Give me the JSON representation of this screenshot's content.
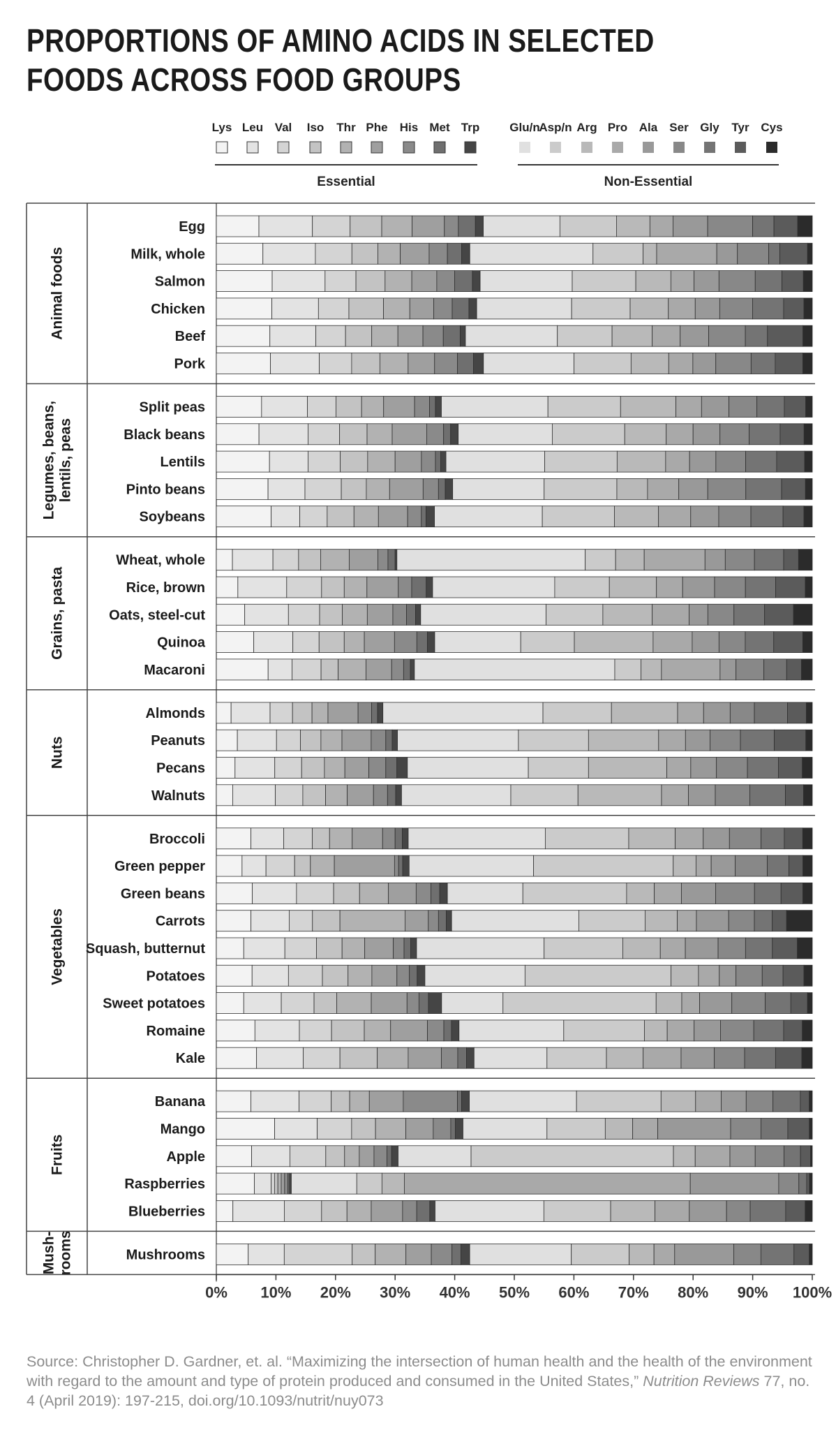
{
  "title": "PROPORTIONS OF AMINO ACIDS IN SELECTED FOODS ACROSS FOOD GROUPS",
  "source": {
    "pre": "Source: Christopher D. Gardner, et. al. “Maximizing the intersection of human health and the health of the environment with regard to the amount and type of protein produced and consumed in the United States,” ",
    "journal": "Nutrition Reviews",
    "post": " 77, no. 4 (April 2019): 197-215, doi.org/10.1093/nutrit/nuy073"
  },
  "chart_data": {
    "type": "bar",
    "orientation": "horizontal",
    "stacked": true,
    "xlim": [
      0,
      100
    ],
    "x_ticks": [
      "0%",
      "10%",
      "20%",
      "30%",
      "40%",
      "50%",
      "60%",
      "70%",
      "80%",
      "90%",
      "100%"
    ],
    "legend_placement": "top",
    "legend_groups": [
      {
        "label": "Essential",
        "amino_acids": [
          "Lys",
          "Leu",
          "Val",
          "Iso",
          "Thr",
          "Phe",
          "His",
          "Met",
          "Trp"
        ]
      },
      {
        "label": "Non-Essential",
        "amino_acids": [
          "Glu/n",
          "Asp/n",
          "Arg",
          "Pro",
          "Ala",
          "Ser",
          "Gly",
          "Tyr",
          "Cys"
        ]
      }
    ],
    "colors": {
      "essential": [
        "#f3f3f3",
        "#e3e3e3",
        "#d4d4d4",
        "#c3c3c3",
        "#b2b2b2",
        "#9f9f9f",
        "#8a8a8a",
        "#6f6f6f",
        "#454545"
      ],
      "non_essential": [
        "#e0e0e0",
        "#cbcbcb",
        "#b9b9b9",
        "#a9a9a9",
        "#999999",
        "#888888",
        "#747474",
        "#5b5b5b",
        "#2b2b2b"
      ]
    },
    "series_order": [
      "Lys",
      "Leu",
      "Val",
      "Iso",
      "Thr",
      "Phe",
      "His",
      "Met",
      "Trp",
      "Glu/n",
      "Asp/n",
      "Arg",
      "Pro",
      "Ala",
      "Ser",
      "Gly",
      "Tyr",
      "Cys"
    ],
    "groups": [
      {
        "name": "Animal foods",
        "foods": [
          {
            "name": "Egg",
            "values": [
              7,
              8.8,
              6.2,
              5.2,
              5,
              5.3,
              2.3,
              2.8,
              1.3,
              12.6,
              9.3,
              5.5,
              3.8,
              5.7,
              7.4,
              3.5,
              3.9,
              2.4
            ]
          },
          {
            "name": "Milk, whole",
            "values": [
              7.9,
              8.9,
              6.2,
              4.4,
              3.8,
              4.9,
              3.1,
              2.4,
              1.4,
              20.9,
              8.5,
              2.3,
              10.2,
              3.5,
              5.3,
              1.9,
              4.7,
              0.8
            ]
          },
          {
            "name": "Salmon",
            "values": [
              9.4,
              8.9,
              5.2,
              4.9,
              4.5,
              4.2,
              3,
              3,
              1.3,
              15.5,
              10.7,
              5.9,
              3.9,
              4.2,
              6.1,
              4.5,
              3.6,
              1.5
            ]
          },
          {
            "name": "Chicken",
            "values": [
              9.3,
              7.8,
              5.1,
              5.8,
              4.4,
              4,
              3.1,
              2.8,
              1.3,
              15.9,
              9.8,
              6.4,
              4.5,
              4.1,
              5.5,
              5.2,
              3.4,
              1.4
            ]
          },
          {
            "name": "Beef",
            "values": [
              9.2,
              7.9,
              5.1,
              4.5,
              4.5,
              4.3,
              3.5,
              2.9,
              0.9,
              15.8,
              9.4,
              6.9,
              4.8,
              4.9,
              6.3,
              3.8,
              6.1,
              1.6
            ]
          },
          {
            "name": "Pork",
            "values": [
              9.2,
              8.3,
              5.5,
              4.8,
              4.8,
              4.5,
              3.9,
              2.7,
              1.7,
              15.4,
              9.7,
              6.4,
              4.1,
              3.9,
              6,
              4.1,
              4.7,
              1.6
            ]
          }
        ]
      },
      {
        "name": "Legumes, beans, lentils, peas",
        "foods": [
          {
            "name": "Split peas",
            "values": [
              7.6,
              7.7,
              4.8,
              4.3,
              3.7,
              5.2,
              2.5,
              1,
              1,
              17.9,
              12.2,
              9.3,
              4.3,
              4.6,
              4.7,
              4.6,
              3.6,
              1.1
            ]
          },
          {
            "name": "Black beans",
            "values": [
              7.3,
              8.4,
              5.4,
              4.7,
              4.3,
              5.9,
              2.9,
              1.2,
              1.3,
              16.1,
              12.4,
              7.1,
              4.6,
              4.6,
              5,
              5.3,
              4.1,
              1.4
            ]
          },
          {
            "name": "Lentils",
            "values": [
              9.1,
              6.6,
              5.5,
              4.7,
              4.7,
              4.5,
              2.4,
              0.9,
              0.9,
              16.9,
              12.4,
              8.3,
              4.1,
              4.5,
              5.1,
              5.3,
              4.8,
              1.3
            ]
          },
          {
            "name": "Pinto beans",
            "values": [
              9.1,
              6.5,
              6.4,
              4.4,
              4.1,
              5.9,
              2.7,
              1.2,
              1.3,
              16.1,
              12.8,
              5.4,
              5.5,
              5.1,
              6.7,
              6.3,
              4.2,
              1.2
            ]
          },
          {
            "name": "Soybeans",
            "values": [
              9.2,
              4.8,
              4.6,
              4.5,
              4.1,
              4.9,
              2.3,
              0.8,
              1.4,
              18.1,
              12.1,
              7.4,
              5.4,
              4.7,
              5.4,
              5.4,
              3.5,
              1.4
            ]
          }
        ]
      },
      {
        "name": "Grains, pasta",
        "foods": [
          {
            "name": "Wheat, whole",
            "values": [
              2.7,
              6.8,
              4.3,
              3.7,
              4.8,
              4.8,
              1.7,
              1.2,
              0.3,
              31.6,
              5.1,
              4.8,
              10.2,
              3.4,
              4.9,
              4.9,
              2.5,
              2.3
            ]
          },
          {
            "name": "Rice, brown",
            "values": [
              3.7,
              8.4,
              6,
              3.9,
              3.9,
              5.4,
              2.3,
              2.5,
              1.1,
              21,
              9.4,
              8.1,
              4.5,
              5.5,
              5.3,
              5.2,
              5.1,
              1.2
            ]
          },
          {
            "name": "Oats, steel-cut",
            "values": [
              5,
              7.7,
              5.5,
              4,
              4.4,
              4.5,
              2.4,
              1.6,
              0.9,
              22.1,
              10,
              8.7,
              6.5,
              3.3,
              4.6,
              5.4,
              5.1,
              3.3
            ]
          },
          {
            "name": "Quinoa",
            "values": [
              6.7,
              7,
              4.7,
              4.5,
              3.6,
              5.4,
              4,
              1.9,
              1.3,
              15.4,
              9.6,
              14.1,
              7,
              4.8,
              4.7,
              5.1,
              5.2,
              1.7
            ]
          },
          {
            "name": "Macaroni",
            "values": [
              9.1,
              4.2,
              5.1,
              3,
              4.9,
              4.5,
              2.1,
              1.2,
              0.7,
              35.2,
              4.6,
              3.6,
              10.3,
              2.8,
              4.9,
              4,
              2.6,
              1.9
            ]
          }
        ]
      },
      {
        "name": "Nuts",
        "foods": [
          {
            "name": "Almonds",
            "values": [
              2.5,
              6.6,
              3.8,
              3.3,
              2.7,
              5.1,
              2.3,
              1,
              0.9,
              27.1,
              11.6,
              11.2,
              4.4,
              4.5,
              4.1,
              5.6,
              3.2,
              1
            ]
          },
          {
            "name": "Peanuts",
            "values": [
              3.6,
              6.7,
              4.1,
              3.5,
              3.6,
              5,
              2.5,
              1.1,
              0.9,
              20.7,
              12,
              12,
              4.6,
              4.2,
              5.2,
              5.8,
              5.4,
              1.1
            ]
          },
          {
            "name": "Pecans",
            "values": [
              3.2,
              6.8,
              4.6,
              3.9,
              3.5,
              4.1,
              2.9,
              1.9,
              1.8,
              20.7,
              10.3,
              13.4,
              4.1,
              4.4,
              5.3,
              5.3,
              4.1,
              1.7
            ]
          },
          {
            "name": "Walnuts",
            "values": [
              2.8,
              7.3,
              4.7,
              3.9,
              3.7,
              4.5,
              2.4,
              1.4,
              1,
              18.7,
              11.5,
              14.3,
              4.6,
              4.6,
              5.9,
              6.1,
              3.1,
              1.5
            ]
          }
        ]
      },
      {
        "name": "Vegetables",
        "foods": [
          {
            "name": "Broccoli",
            "values": [
              5.8,
              5.5,
              4.8,
              2.9,
              3.8,
              5.1,
              2.1,
              1.2,
              1,
              23,
              14,
              7.8,
              4.7,
              4.4,
              5.3,
              3.9,
              3.1,
              1.6
            ]
          },
          {
            "name": "Green pepper",
            "values": [
              4.4,
              4.1,
              4.9,
              2.7,
              4.1,
              10.3,
              0.7,
              0.7,
              1.1,
              21.3,
              23.9,
              3.9,
              2.6,
              4.1,
              5.5,
              3.7,
              2.4,
              1.6
            ]
          },
          {
            "name": "Green beans",
            "values": [
              6.1,
              7.5,
              6.3,
              4.4,
              4.9,
              4.7,
              2.5,
              1.5,
              1.3,
              12.8,
              17.6,
              4.7,
              4.6,
              5.8,
              6.6,
              4.5,
              3.7,
              1.6
            ]
          },
          {
            "name": "Carrots",
            "values": [
              5.8,
              6.4,
              3.9,
              4.6,
              10.9,
              3.9,
              1.7,
              1.3,
              0.9,
              21.3,
              11.1,
              5.4,
              3.2,
              5.4,
              4.3,
              3,
              2.4,
              4.3
            ]
          },
          {
            "name": "Squash, butternut",
            "values": [
              4.6,
              6.9,
              5.3,
              4.3,
              3.8,
              4.8,
              1.8,
              1.1,
              1,
              21.4,
              13.2,
              6.3,
              4.2,
              5.5,
              4.6,
              4.5,
              4.2,
              2.5
            ]
          },
          {
            "name": "Potatoes",
            "values": [
              6,
              6.1,
              5.7,
              4.3,
              4,
              4.2,
              2.1,
              1.3,
              1.3,
              16.8,
              24.5,
              4.6,
              3.5,
              2.8,
              4.4,
              3.5,
              3.5,
              1.4
            ]
          },
          {
            "name": "Sweet potatoes",
            "values": [
              4.6,
              6.3,
              5.5,
              3.8,
              5.8,
              6,
              2,
              1.6,
              2.2,
              10.3,
              25.7,
              4.3,
              3,
              5.4,
              5.6,
              4.3,
              2.8,
              0.8
            ]
          },
          {
            "name": "Romaine",
            "values": [
              6.6,
              7.6,
              5.5,
              5.6,
              4.5,
              6.3,
              2.8,
              1.3,
              1.3,
              17.9,
              13.8,
              3.9,
              4.6,
              4.5,
              5.7,
              5.1,
              3.2,
              1.7
            ]
          },
          {
            "name": "Kale",
            "values": [
              6.9,
              8,
              6.3,
              6.4,
              5.3,
              5.7,
              2.8,
              1.5,
              1.3,
              12.5,
              10.2,
              6.3,
              6.5,
              5.7,
              5.2,
              5.3,
              4.5,
              1.8
            ]
          }
        ]
      },
      {
        "name": "Fruits",
        "foods": [
          {
            "name": "Banana",
            "values": [
              5.8,
              8.1,
              5.4,
              3.1,
              3.3,
              5.7,
              9.1,
              0.7,
              1.3,
              18,
              14.2,
              5.8,
              4.3,
              4.2,
              4.5,
              4.6,
              1.5,
              0.5
            ]
          },
          {
            "name": "Mango",
            "values": [
              10,
              7.3,
              5.9,
              4.1,
              5.2,
              4.7,
              3,
              0.8,
              1.3,
              14.4,
              10,
              4.7,
              4.3,
              12.5,
              5.2,
              4.6,
              3.7,
              0.5
            ]
          },
          {
            "name": "Apple",
            "values": [
              6,
              6.5,
              6.1,
              3.2,
              2.5,
              2.5,
              2.2,
              0.8,
              1.1,
              12.4,
              34.4,
              3.7,
              5.9,
              4.3,
              4.9,
              2.8,
              1.7,
              0.3
            ]
          },
          {
            "name": "Raspberries",
            "values": [
              6.8,
              3,
              0.6,
              0.6,
              0.6,
              0.6,
              0.6,
              0.3,
              0.3,
              11.7,
              4.5,
              4,
              51.1,
              15.8,
              3.6,
              1.4,
              0.5,
              0.5
            ]
          },
          {
            "name": "Blueberries",
            "values": [
              2.8,
              8.7,
              6.3,
              4.3,
              4.1,
              5.3,
              2.4,
              2.2,
              0.9,
              18.4,
              11.3,
              7.5,
              5.8,
              6.3,
              4,
              6,
              3.3,
              1.2
            ]
          }
        ]
      },
      {
        "name": "Mush-rooms",
        "foods": [
          {
            "name": "Mushrooms",
            "values": [
              5.4,
              6.1,
              11.5,
              3.9,
              5.2,
              4.3,
              3.5,
              1.5,
              1.5,
              17.2,
              9.8,
              4.2,
              3.5,
              10,
              4.6,
              5.6,
              2.6,
              0.5
            ]
          }
        ]
      }
    ]
  }
}
